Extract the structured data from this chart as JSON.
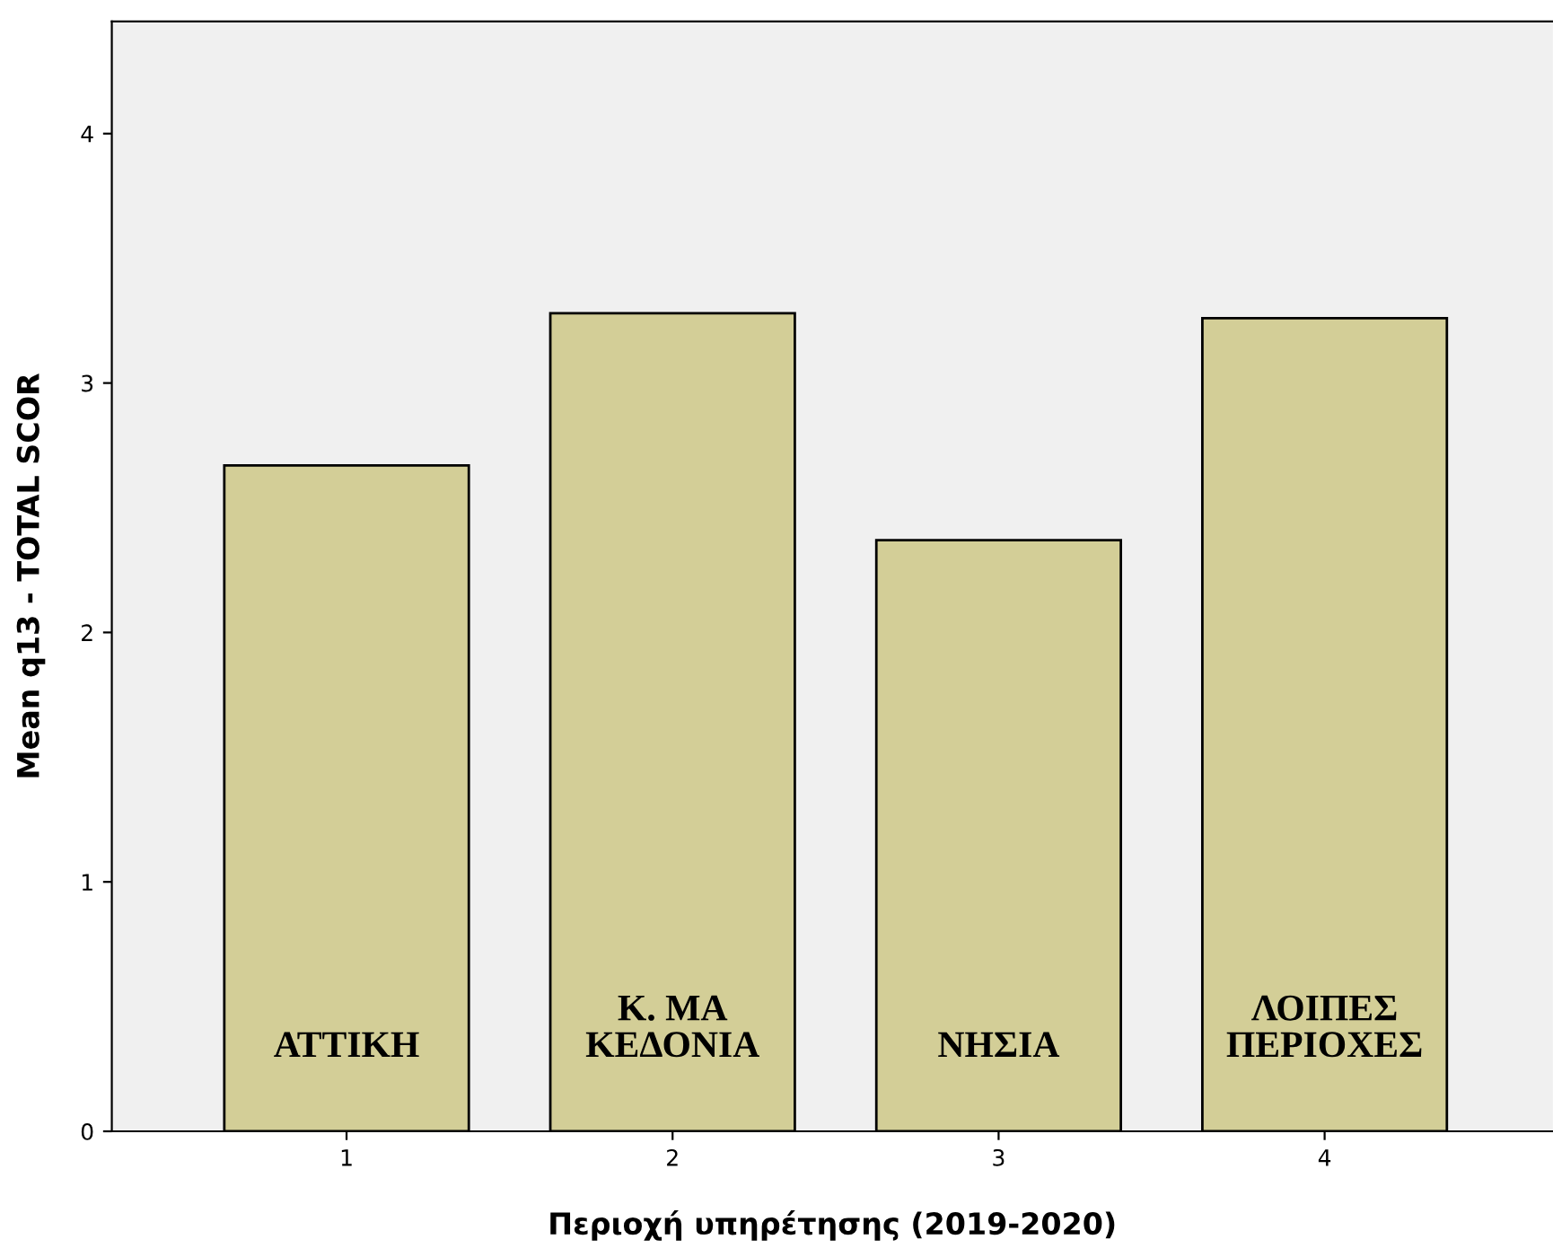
{
  "chart_data": {
    "type": "bar",
    "xlabel": "Περιοχή υπηρέτησης (2019-2020)",
    "ylabel": "Mean q13 - TOTAL SCOR",
    "categories": [
      "1",
      "2",
      "3",
      "4"
    ],
    "values": [
      2.67,
      3.28,
      2.37,
      3.26
    ],
    "color": "#d3ce97",
    "ylim": [
      0,
      4.45
    ],
    "yticks": [
      0,
      1,
      2,
      3,
      4
    ],
    "grid": false,
    "legend": false,
    "annotations": [
      "ΑΤΤΙΚΗ",
      "Κ. ΜΑ\nΚΕΔΟΝΙΑ",
      "ΝΗΣΙΑ",
      "ΛΟΙΠΕΣ\nΠΕΡΙΟΧΕΣ"
    ]
  }
}
